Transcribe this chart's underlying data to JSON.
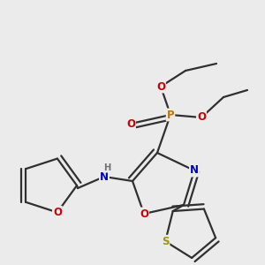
{
  "bg_color": "#ebebeb",
  "bond_color": "#303030",
  "bond_lw": 1.6,
  "dbo": 0.018,
  "atom_colors": {
    "C": "#1a1a1a",
    "H": "#707070",
    "N": "#0000bb",
    "O": "#cc0000",
    "P": "#bb7700",
    "S": "#999900"
  },
  "fs": 8.5,
  "fss": 7.2,
  "fig_size": [
    3.0,
    3.0
  ],
  "dpi": 100,
  "xlim": [
    0,
    300
  ],
  "ylim": [
    0,
    300
  ]
}
